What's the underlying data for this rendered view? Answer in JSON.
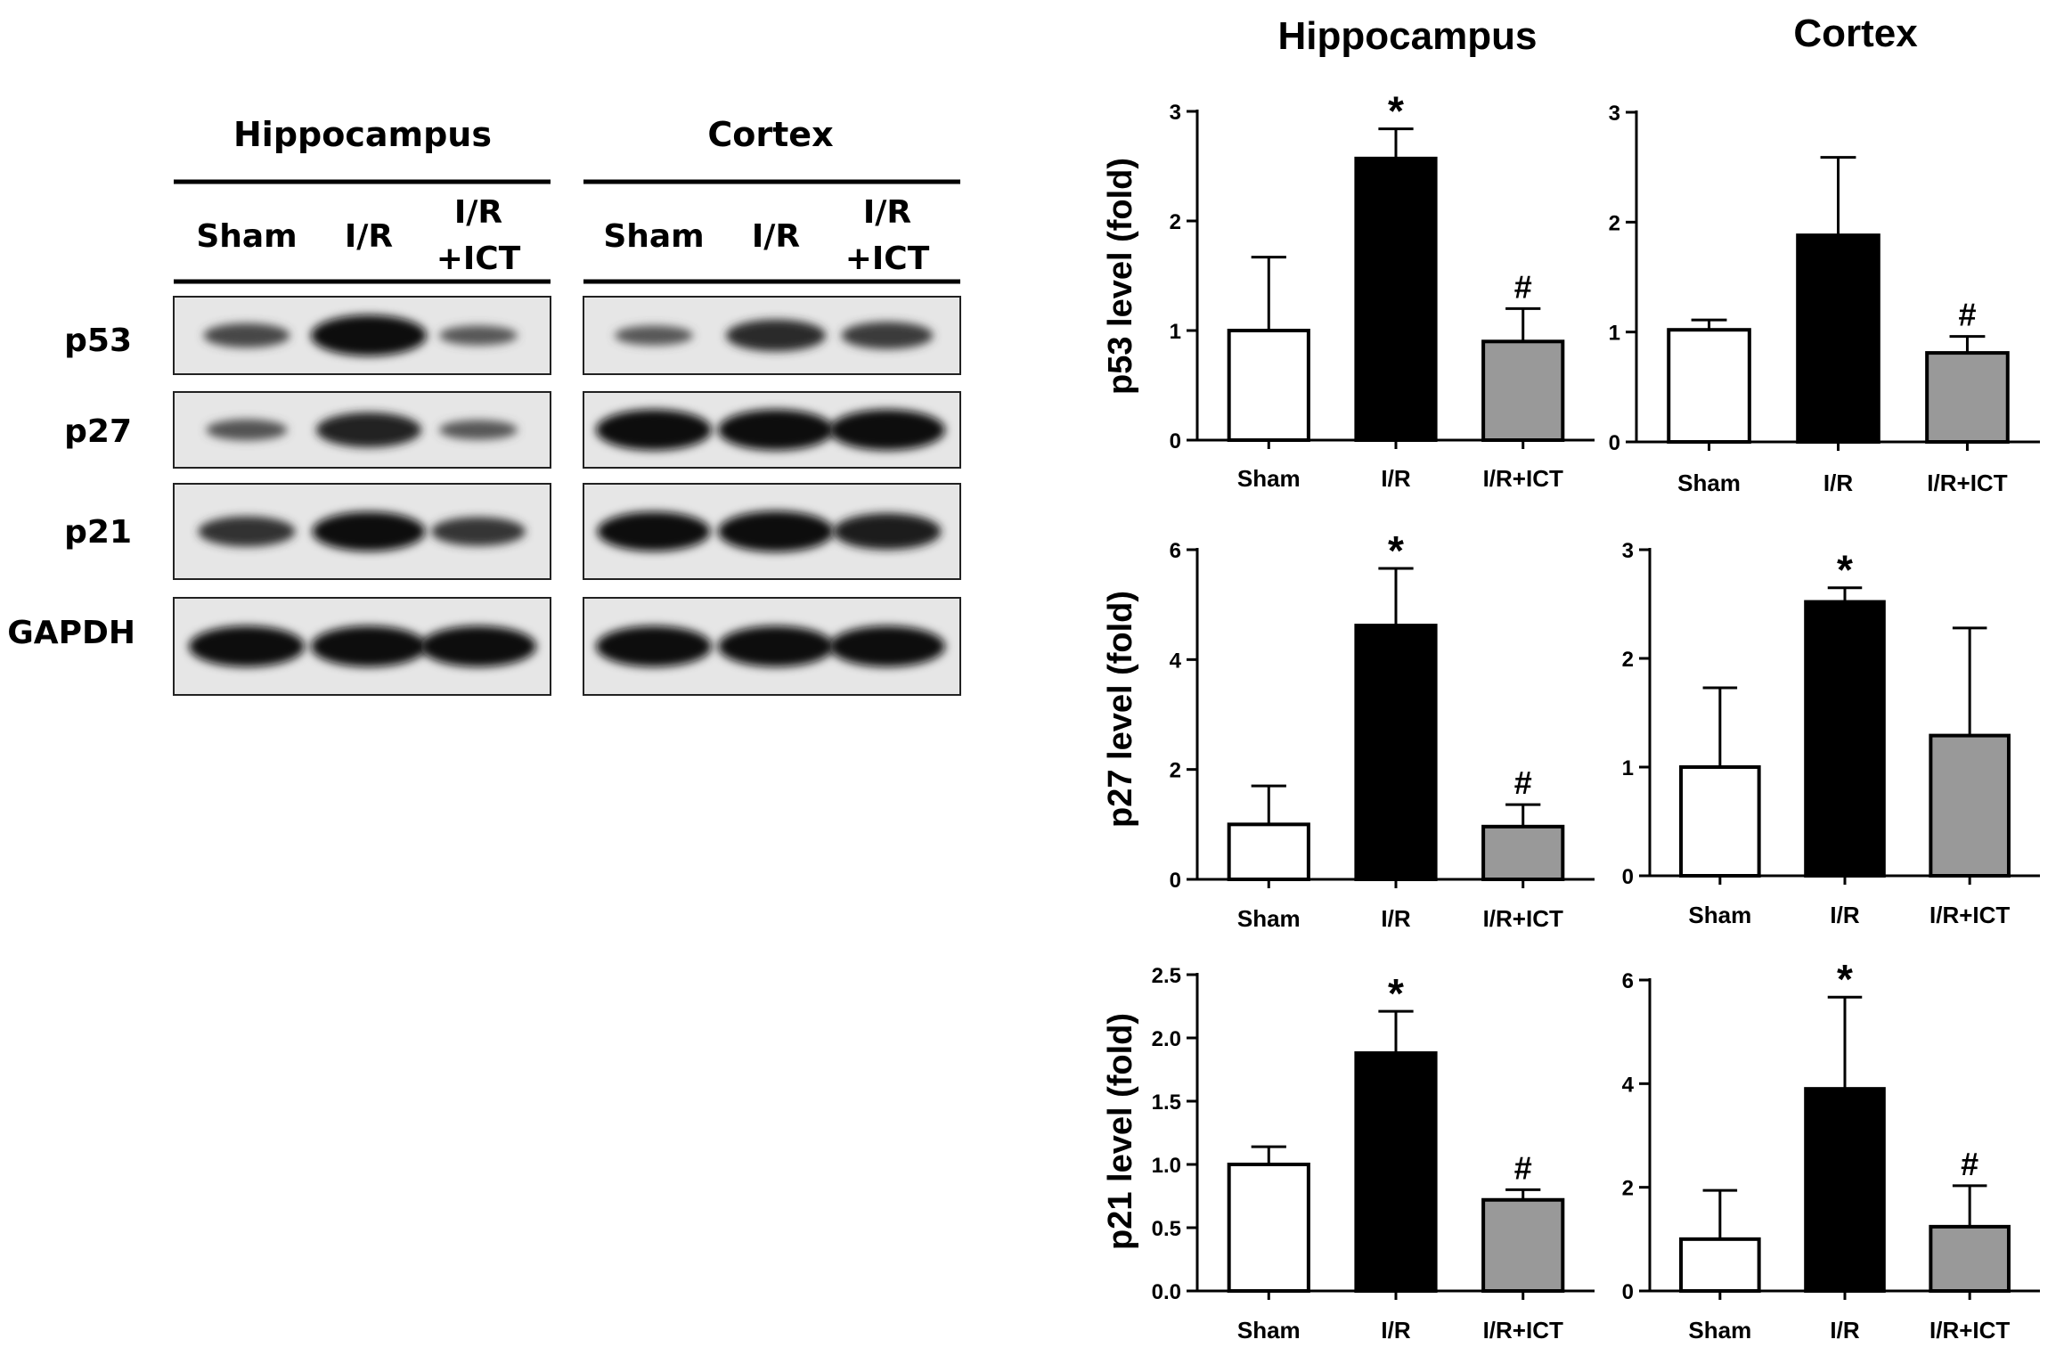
{
  "blot": {
    "panels": [
      {
        "title": "Hippocampus",
        "lanes": [
          "Sham",
          "I/R",
          "I/R\n+ICT"
        ]
      },
      {
        "title": "Cortex",
        "lanes": [
          "Sham",
          "I/R",
          "I/R\n+ICT"
        ]
      }
    ],
    "proteins": [
      "p53",
      "p27",
      "p21",
      "GAPDH"
    ],
    "band_intensity": [
      [
        [
          0.45,
          1.0,
          0.3
        ],
        [
          0.3,
          0.7,
          0.55
        ]
      ],
      [
        [
          0.35,
          0.8,
          0.3
        ],
        [
          1.0,
          1.0,
          1.0
        ]
      ],
      [
        [
          0.65,
          0.95,
          0.6
        ],
        [
          0.95,
          1.0,
          0.85
        ]
      ],
      [
        [
          1.0,
          1.0,
          1.0
        ],
        [
          1.0,
          1.0,
          1.0
        ]
      ]
    ]
  },
  "column_titles": [
    "Hippocampus",
    "Cortex"
  ],
  "chart_data": [
    {
      "type": "bar",
      "region": "Hippocampus",
      "protein": "p53",
      "categories": [
        "Sham",
        "I/R",
        "I/R+ICT"
      ],
      "values": [
        1.0,
        2.57,
        0.9
      ],
      "errors": [
        0.67,
        0.27,
        0.3
      ],
      "bar_colors": [
        "#ffffff",
        "#000000",
        "#999999"
      ],
      "annotations": [
        "",
        "*",
        "#"
      ],
      "ylabel": "p53 level (fold)",
      "ylim": [
        0,
        3
      ],
      "yticks": [
        0,
        1,
        2,
        3
      ],
      "ytick_labels": [
        "0",
        "1",
        "2",
        "3"
      ]
    },
    {
      "type": "bar",
      "region": "Cortex",
      "protein": "p53",
      "categories": [
        "Sham",
        "I/R",
        "I/R+ICT"
      ],
      "values": [
        1.02,
        1.88,
        0.81
      ],
      "errors": [
        0.09,
        0.71,
        0.15
      ],
      "bar_colors": [
        "#ffffff",
        "#000000",
        "#999999"
      ],
      "annotations": [
        "",
        "",
        "#"
      ],
      "ylabel": "",
      "ylim": [
        0,
        3
      ],
      "yticks": [
        0,
        1,
        2,
        3
      ],
      "ytick_labels": [
        "0",
        "1",
        "2",
        "3"
      ]
    },
    {
      "type": "bar",
      "region": "Hippocampus",
      "protein": "p27",
      "categories": [
        "Sham",
        "I/R",
        "I/R+ICT"
      ],
      "values": [
        1.0,
        4.62,
        0.96
      ],
      "errors": [
        0.7,
        1.04,
        0.4
      ],
      "bar_colors": [
        "#ffffff",
        "#000000",
        "#999999"
      ],
      "annotations": [
        "",
        "*",
        "#"
      ],
      "ylabel": "p27 level (fold)",
      "ylim": [
        0,
        6
      ],
      "yticks": [
        0,
        2,
        4,
        6
      ],
      "ytick_labels": [
        "0",
        "2",
        "4",
        "6"
      ]
    },
    {
      "type": "bar",
      "region": "Cortex",
      "protein": "p27",
      "categories": [
        "Sham",
        "I/R",
        "I/R+ICT"
      ],
      "values": [
        1.0,
        2.52,
        1.29
      ],
      "errors": [
        0.73,
        0.13,
        0.99
      ],
      "bar_colors": [
        "#ffffff",
        "#000000",
        "#999999"
      ],
      "annotations": [
        "",
        "*",
        ""
      ],
      "ylabel": "",
      "ylim": [
        0,
        3
      ],
      "yticks": [
        0,
        1,
        2,
        3
      ],
      "ytick_labels": [
        "0",
        "1",
        "2",
        "3"
      ]
    },
    {
      "type": "bar",
      "region": "Hippocampus",
      "protein": "p21",
      "categories": [
        "Sham",
        "I/R",
        "I/R+ICT"
      ],
      "values": [
        1.0,
        1.88,
        0.72
      ],
      "errors": [
        0.14,
        0.33,
        0.08
      ],
      "bar_colors": [
        "#ffffff",
        "#000000",
        "#999999"
      ],
      "annotations": [
        "",
        "*",
        "#"
      ],
      "ylabel": "p21 level (fold)",
      "ylim": [
        0,
        2.5
      ],
      "yticks": [
        0,
        0.5,
        1.0,
        1.5,
        2.0,
        2.5
      ],
      "ytick_labels": [
        "0.0",
        "0.5",
        "1.0",
        "1.5",
        "2.0",
        "2.5"
      ]
    },
    {
      "type": "bar",
      "region": "Cortex",
      "protein": "p21",
      "categories": [
        "Sham",
        "I/R",
        "I/R+ICT"
      ],
      "values": [
        1.0,
        3.9,
        1.24
      ],
      "errors": [
        0.94,
        1.77,
        0.79
      ],
      "bar_colors": [
        "#ffffff",
        "#000000",
        "#999999"
      ],
      "annotations": [
        "",
        "*",
        "#"
      ],
      "ylabel": "",
      "ylim": [
        0,
        6
      ],
      "yticks": [
        0,
        2,
        4,
        6
      ],
      "ytick_labels": [
        "0",
        "2",
        "4",
        "6"
      ]
    }
  ]
}
